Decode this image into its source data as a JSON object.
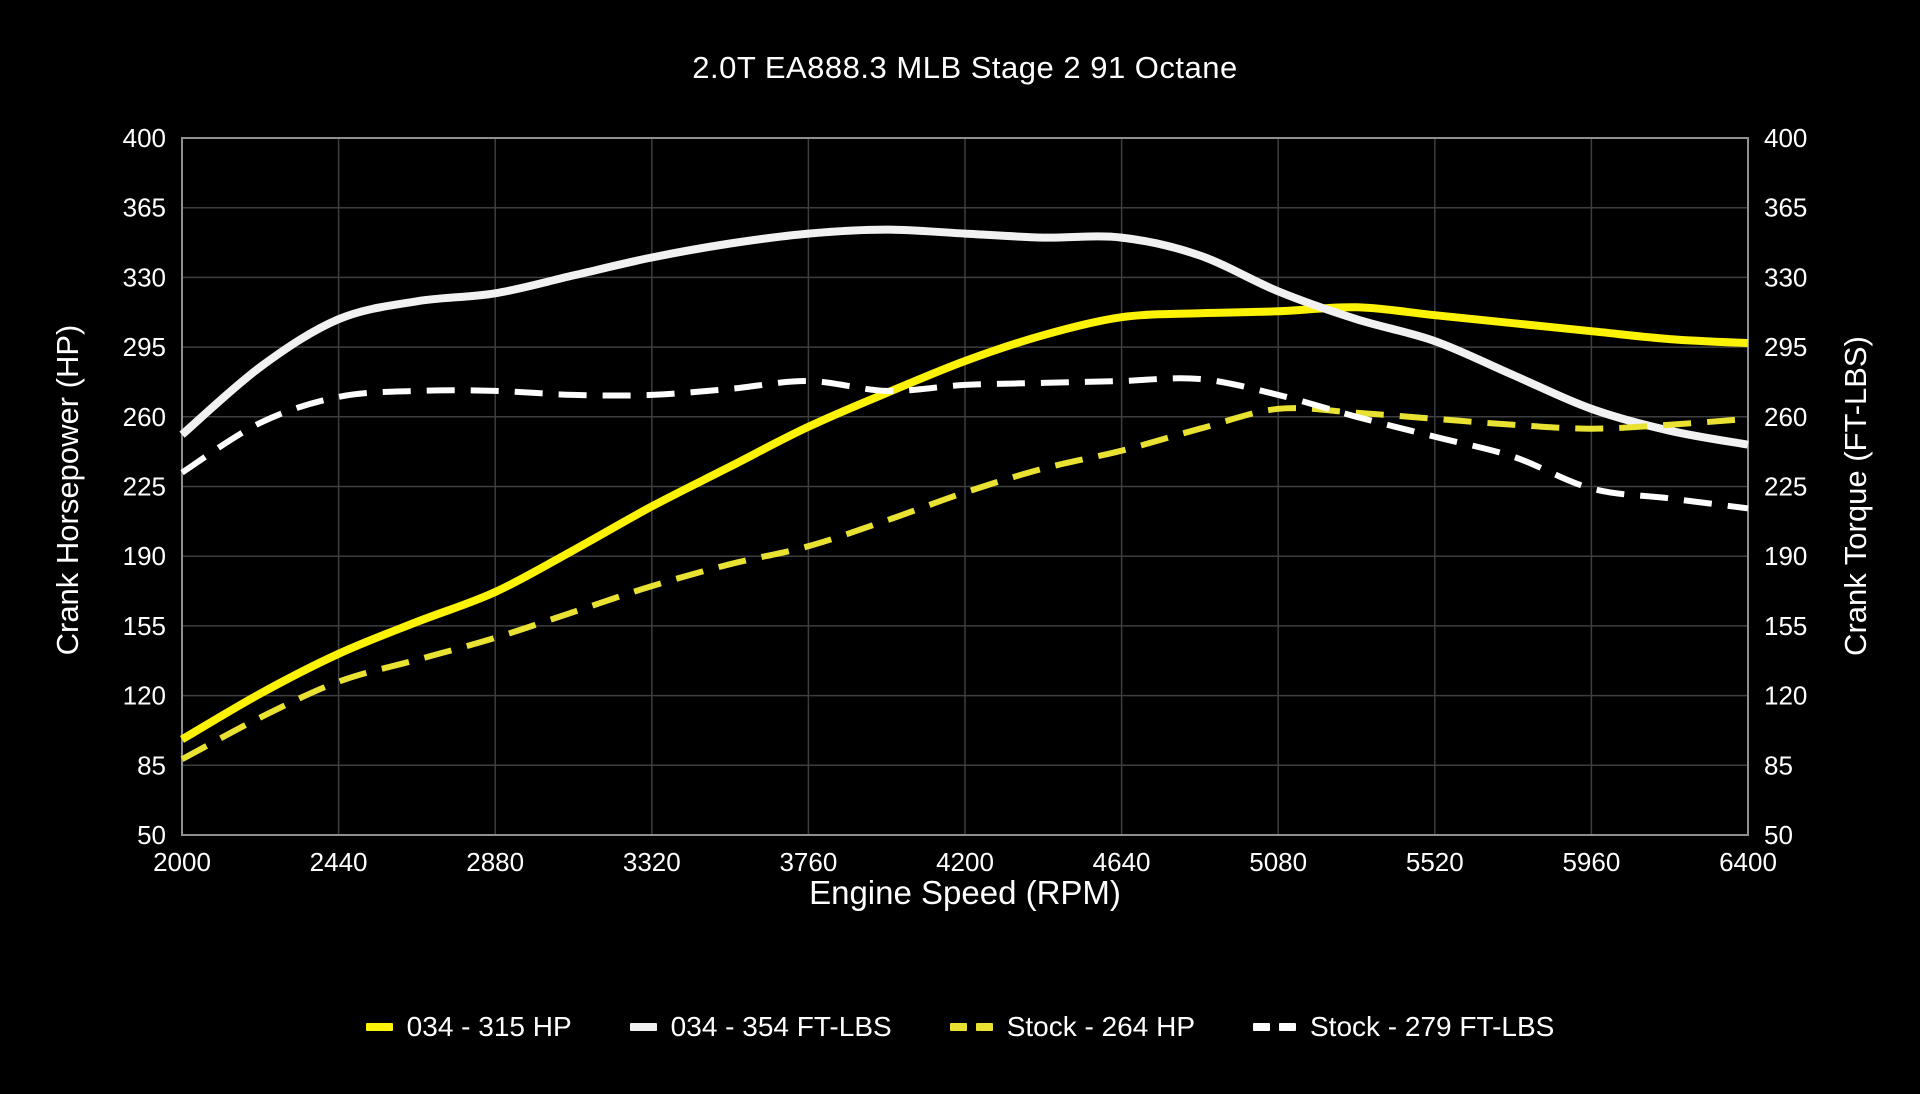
{
  "title": "2.0T EA888.3 MLB Stage 2 91 Octane",
  "colors": {
    "background": "#000000",
    "text": "#ffffff",
    "grid": "#3e3e3e",
    "frame": "#8f8f8f",
    "yellow_solid": "#fbf206",
    "yellow_dashed": "#e9e232",
    "white_solid": "#f1f1f1",
    "white_dashed": "#fdfdfd"
  },
  "chart_data": {
    "type": "line",
    "title": "2.0T EA888.3 MLB Stage 2 91 Octane",
    "xlabel": "Engine Speed (RPM)",
    "ylabel_left": "Crank Horsepower (HP)",
    "ylabel_right": "Crank Torque (FT-LBS)",
    "xlim": [
      2000,
      6400
    ],
    "ylim": [
      50,
      400
    ],
    "x_ticks": [
      2000,
      2440,
      2880,
      3320,
      3760,
      4200,
      4640,
      5080,
      5520,
      5960,
      6400
    ],
    "y_ticks": [
      50,
      85,
      120,
      155,
      190,
      225,
      260,
      295,
      330,
      365,
      400
    ],
    "grid": true,
    "legend_position": "bottom",
    "x": [
      2000,
      2220,
      2440,
      2660,
      2880,
      3100,
      3320,
      3540,
      3760,
      3980,
      4200,
      4420,
      4640,
      4860,
      5080,
      5300,
      5520,
      5740,
      5960,
      6180,
      6400
    ],
    "series": [
      {
        "name": "034 - 315 HP",
        "peak": 315,
        "unit": "HP",
        "color": "#fbf206",
        "style": "solid",
        "values": [
          98,
          121,
          141,
          157,
          172,
          193,
          215,
          235,
          255,
          272,
          288,
          301,
          310,
          312,
          313,
          315,
          311,
          307,
          303,
          299,
          297
        ]
      },
      {
        "name": "034 - 354 FT-LBS",
        "peak": 354,
        "unit": "FT-LBS",
        "color": "#f1f1f1",
        "style": "solid",
        "values": [
          251,
          285,
          309,
          318,
          322,
          331,
          340,
          347,
          352,
          354,
          352,
          350,
          350,
          341,
          323,
          309,
          298,
          281,
          264,
          253,
          246
        ]
      },
      {
        "name": "Stock - 264 HP",
        "peak": 264,
        "unit": "HP",
        "color": "#e9e232",
        "style": "dashed",
        "values": [
          88,
          109,
          127,
          138,
          149,
          162,
          175,
          186,
          195,
          208,
          222,
          234,
          243,
          254,
          264,
          262,
          259,
          256,
          254,
          256,
          259
        ]
      },
      {
        "name": "Stock - 279 FT-LBS",
        "peak": 279,
        "unit": "FT-LBS",
        "color": "#fdfdfd",
        "style": "dashed",
        "values": [
          232,
          257,
          270,
          273,
          273,
          271,
          271,
          274,
          278,
          273,
          276,
          277,
          278,
          279,
          271,
          260,
          250,
          240,
          224,
          219,
          214
        ]
      }
    ]
  }
}
